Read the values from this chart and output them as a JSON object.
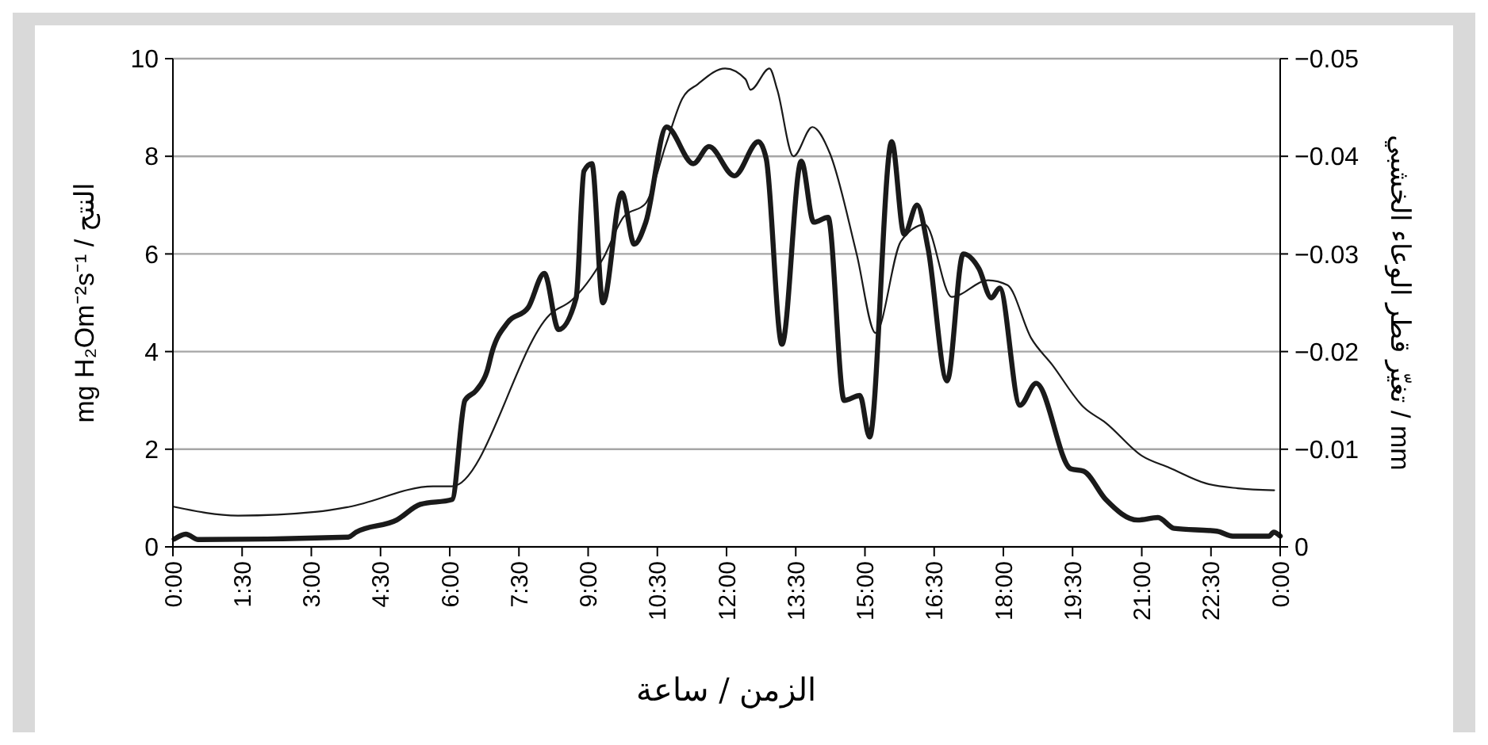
{
  "chart_data": {
    "type": "line",
    "xlabel": "الزمن / ساعة",
    "ylabel": "mg H₂Om⁻²s⁻¹ / النتح",
    "y2label": "تغيّر قطر الوعاء الخشبي / mm",
    "xlim": [
      0,
      24
    ],
    "xticks": [
      {
        "value": 0,
        "label": "0:00"
      },
      {
        "value": 1.5,
        "label": "1:30"
      },
      {
        "value": 3,
        "label": "3:00"
      },
      {
        "value": 4.5,
        "label": "4:30"
      },
      {
        "value": 6,
        "label": "6:00"
      },
      {
        "value": 7.5,
        "label": "7:30"
      },
      {
        "value": 9,
        "label": "9:00"
      },
      {
        "value": 10.5,
        "label": "10:30"
      },
      {
        "value": 12,
        "label": "12:00"
      },
      {
        "value": 13.5,
        "label": "13:30"
      },
      {
        "value": 15,
        "label": "15:00"
      },
      {
        "value": 16.5,
        "label": "16:30"
      },
      {
        "value": 18,
        "label": "18:00"
      },
      {
        "value": 19.5,
        "label": "19:30"
      },
      {
        "value": 21,
        "label": "21:00"
      },
      {
        "value": 22.5,
        "label": "22:30"
      },
      {
        "value": 24,
        "label": "0:00"
      }
    ],
    "ylim": [
      0,
      10
    ],
    "yticks": [
      0,
      2,
      4,
      6,
      8,
      10
    ],
    "y2lim": [
      0,
      -0.05
    ],
    "y2ticks": [
      0,
      {
        "value": -0.01,
        "label": "−0.01"
      },
      {
        "value": -0.02,
        "label": "−0.02"
      },
      {
        "value": -0.03,
        "label": "−0.03"
      },
      {
        "value": -0.04,
        "label": "−0.04"
      },
      {
        "value": -0.05,
        "label": "−0.05"
      }
    ],
    "grid": "y",
    "marker": "none",
    "series": [
      {
        "color": "#1a1a1a",
        "x": [
          0.03,
          0.28,
          0.55,
          3.8,
          3.97,
          4.85,
          5.36,
          6.05,
          6.33,
          6.57,
          6.81,
          6.92,
          7.26,
          7.7,
          8.05,
          8.36,
          8.74,
          8.91,
          9.08,
          9.32,
          9.73,
          10.0,
          10.25,
          10.7,
          11.28,
          11.62,
          12.17,
          12.69,
          12.86,
          13.2,
          13.62,
          13.89,
          14.2,
          14.55,
          14.89,
          15.1,
          15.58,
          15.85,
          16.13,
          16.37,
          16.78,
          17.13,
          17.47,
          17.74,
          17.92,
          18.36,
          18.71,
          19.46,
          19.74,
          20.22,
          20.91,
          21.35,
          21.7,
          22.63,
          22.97,
          23.76,
          23.86,
          24
        ],
        "values": [
          0.16,
          0.26,
          0.15,
          0.2,
          0.3,
          0.55,
          0.87,
          0.97,
          3.0,
          3.2,
          3.6,
          4.0,
          4.6,
          4.9,
          5.6,
          4.45,
          5.1,
          7.7,
          7.85,
          5.0,
          7.25,
          6.2,
          6.65,
          8.6,
          7.85,
          8.2,
          7.6,
          8.3,
          7.95,
          4.15,
          7.9,
          6.65,
          6.75,
          3.0,
          3.1,
          2.25,
          8.3,
          6.4,
          7.0,
          6.1,
          3.4,
          6.0,
          5.7,
          5.1,
          5.3,
          2.9,
          3.35,
          1.6,
          1.55,
          0.97,
          0.55,
          0.6,
          0.38,
          0.32,
          0.22,
          0.22,
          0.3,
          0.22
        ]
      },
      {
        "color": "#1a1a1a",
        "axis": "y2",
        "x": [
          0.03,
          1.41,
          3.13,
          3.82,
          5.64,
          6.05,
          8.22,
          8.63,
          9.32,
          9.77,
          10.25,
          10.7,
          11.04,
          11.38,
          11.97,
          12.41,
          12.52,
          12.93,
          13.1,
          13.45,
          13.86,
          14.24,
          14.82,
          15.23,
          15.78,
          16.3,
          16.88,
          17.67,
          18.09,
          18.6,
          19.05,
          19.74,
          20.22,
          21.01,
          21.6,
          22.39,
          23.08,
          23.87
        ],
        "values": [
          -0.0041,
          -0.0032,
          -0.0036,
          -0.0041,
          -0.0062,
          -0.0062,
          -0.024,
          -0.0252,
          -0.0295,
          -0.0338,
          -0.0352,
          -0.0414,
          -0.0459,
          -0.0474,
          -0.049,
          -0.0479,
          -0.0468,
          -0.049,
          -0.0468,
          -0.04,
          -0.043,
          -0.0403,
          -0.03,
          -0.0219,
          -0.0313,
          -0.033,
          -0.0256,
          -0.0273,
          -0.0268,
          -0.0214,
          -0.0187,
          -0.0143,
          -0.0127,
          -0.0093,
          -0.0081,
          -0.0065,
          -0.006,
          -0.0058
        ]
      }
    ]
  }
}
